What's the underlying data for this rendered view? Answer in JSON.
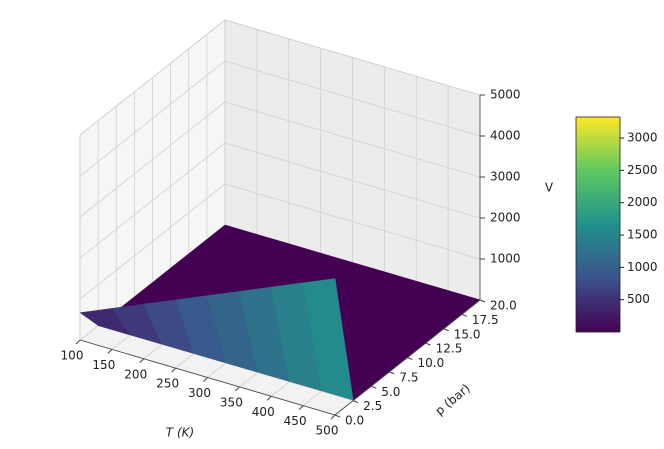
{
  "chart_data": {
    "type": "surface",
    "xlabel": "T (K)",
    "ylabel": "p (bar)",
    "zlabel": "V",
    "colormap": "viridis",
    "x": [
      100,
      150,
      200,
      250,
      300,
      350,
      400,
      450,
      500
    ],
    "y": [
      0.0125,
      2.5,
      5,
      7.5,
      10,
      12.5,
      15,
      17.5,
      20
    ],
    "values": [
      [
        665,
        998,
        1330,
        1663,
        1995,
        2328,
        2660,
        2993,
        3326
      ],
      [
        3.3,
        5.0,
        6.7,
        8.3,
        10.0,
        11.6,
        13.3,
        15.0,
        16.6
      ],
      [
        1.7,
        2.5,
        3.3,
        4.2,
        5.0,
        5.8,
        6.7,
        7.5,
        8.3
      ],
      [
        1.1,
        1.7,
        2.2,
        2.8,
        3.3,
        3.9,
        4.4,
        5.0,
        5.5
      ],
      [
        0.8,
        1.2,
        1.7,
        2.1,
        2.5,
        2.9,
        3.3,
        3.7,
        4.2
      ],
      [
        0.7,
        1.0,
        1.3,
        1.7,
        2.0,
        2.3,
        2.7,
        3.0,
        3.3
      ],
      [
        0.6,
        0.8,
        1.1,
        1.4,
        1.7,
        1.9,
        2.2,
        2.5,
        2.8
      ],
      [
        0.5,
        0.7,
        1.0,
        1.2,
        1.4,
        1.7,
        1.9,
        2.1,
        2.4
      ],
      [
        0.4,
        0.6,
        0.8,
        1.0,
        1.2,
        1.5,
        1.7,
        1.9,
        2.1
      ]
    ],
    "xlim": [
      100,
      500
    ],
    "xticks": [
      100,
      150,
      200,
      250,
      300,
      350,
      400,
      450,
      500
    ],
    "ylim": [
      0,
      20
    ],
    "yticks": [
      {
        "value": 0,
        "label": "0.0"
      },
      2.5,
      {
        "value": 5,
        "label": "5.0"
      },
      7.5,
      {
        "value": 10,
        "label": "10.0"
      },
      12.5,
      {
        "value": 15,
        "label": "15.0"
      },
      17.5,
      {
        "value": 20,
        "label": "20.0"
      }
    ],
    "zlim": [
      0,
      5000
    ],
    "zticks": [
      1000,
      2000,
      3000,
      4000,
      5000
    ],
    "colorbar": {
      "lim": [
        0.4,
        3326
      ],
      "ticks": [
        500,
        1000,
        1500,
        2000,
        2500,
        3000
      ]
    }
  }
}
